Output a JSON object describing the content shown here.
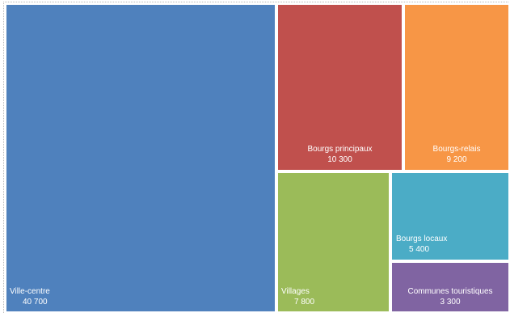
{
  "chart_data": {
    "type": "treemap",
    "title": "",
    "items": [
      {
        "label": "Ville-centre",
        "value_label": "40 700",
        "value": 40700,
        "color": "#4f81bd"
      },
      {
        "label": "Bourgs principaux",
        "value_label": "10 300",
        "value": 10300,
        "color": "#c0504d"
      },
      {
        "label": "Bourgs-relais",
        "value_label": "9 200",
        "value": 9200,
        "color": "#f79646"
      },
      {
        "label": "Villages",
        "value_label": "7 800",
        "value": 7800,
        "color": "#9bbb59"
      },
      {
        "label": "Bourgs locaux",
        "value_label": "5 400",
        "value": 5400,
        "color": "#4bacc6"
      },
      {
        "label": "Communes touristiques",
        "value_label": "3 300",
        "value": 3300,
        "color": "#8064a2"
      }
    ]
  }
}
